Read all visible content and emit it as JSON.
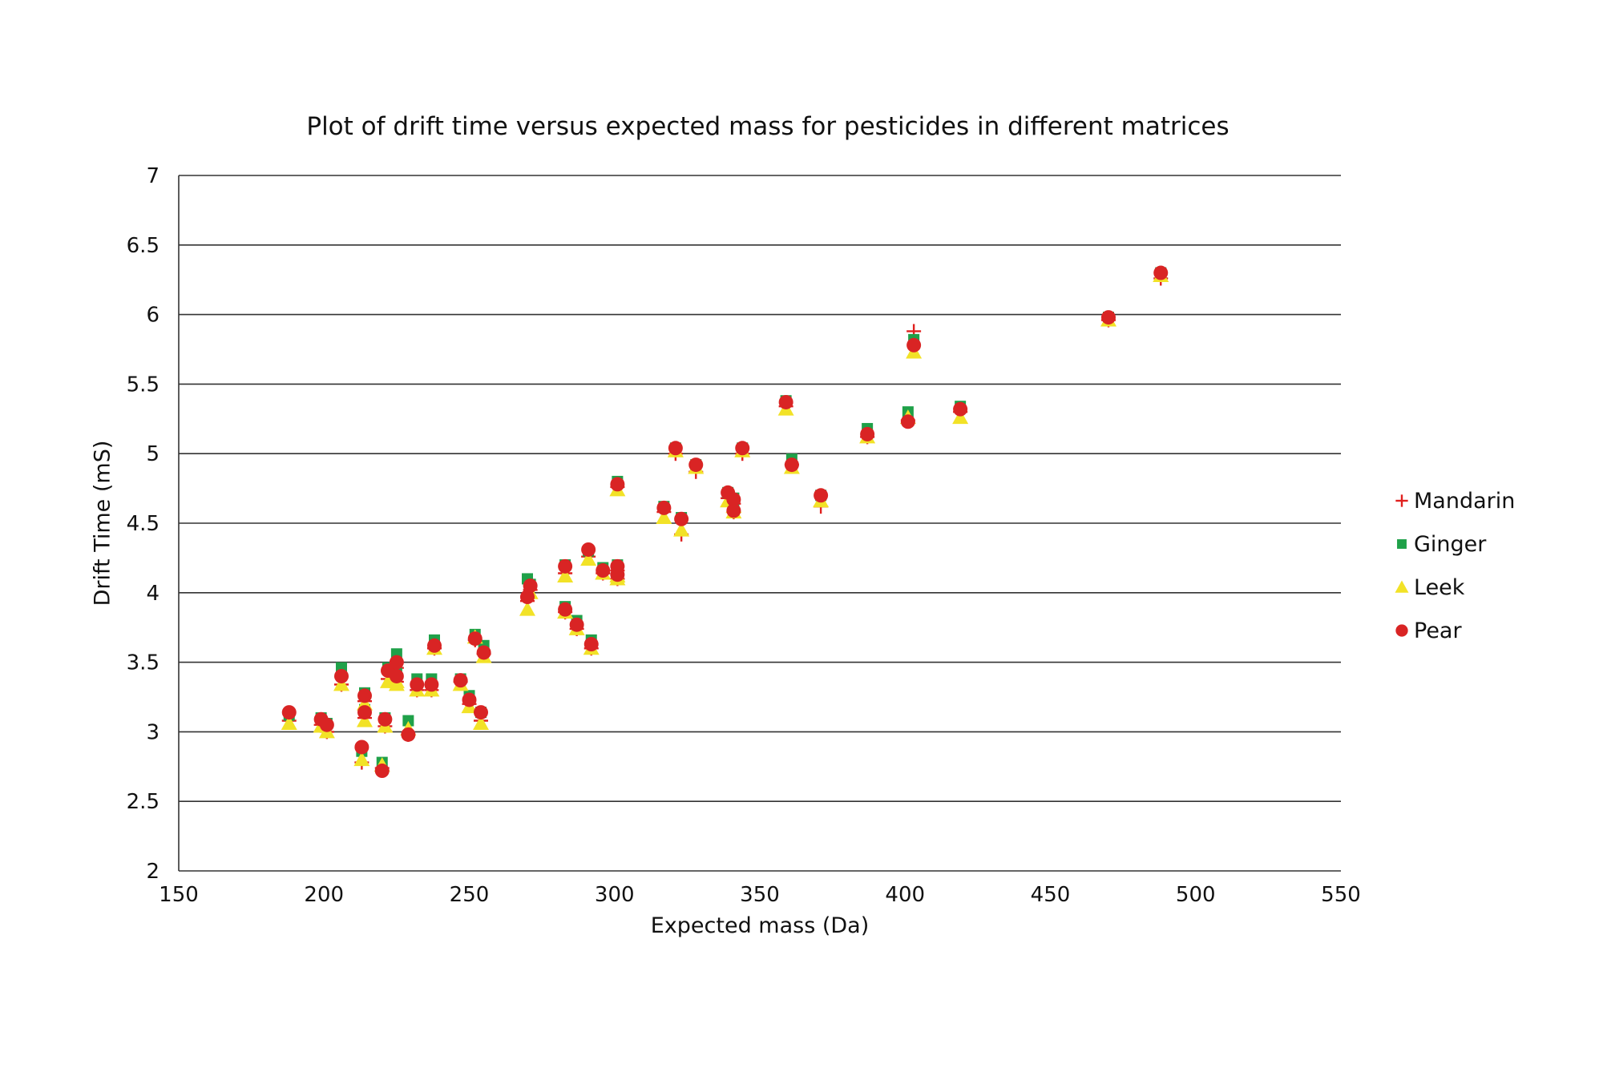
{
  "chart_data": {
    "type": "scatter",
    "title": "Plot of drift time versus expected mass for pesticides in different matrices",
    "xlabel": "Expected mass (Da)",
    "ylabel": "Drift Time (mS)",
    "xlim": [
      150,
      550
    ],
    "ylim": [
      2,
      7
    ],
    "xticks": [
      "150",
      "200",
      "250",
      "300",
      "350",
      "400",
      "450",
      "500",
      "550"
    ],
    "yticks": [
      "2",
      "2.5",
      "3",
      "3.5",
      "4",
      "4.5",
      "5",
      "5.5",
      "6",
      "6.5",
      "7"
    ],
    "grid": "horizontal",
    "legend": "right",
    "x": [
      188,
      199,
      201,
      206,
      213,
      214,
      214,
      220,
      221,
      222,
      225,
      225,
      229,
      232,
      237,
      238,
      247,
      250,
      252,
      254,
      255,
      270,
      271,
      283,
      283,
      287,
      291,
      292,
      296,
      301,
      301,
      301,
      317,
      321,
      323,
      328,
      339,
      341,
      341,
      344,
      359,
      361,
      371,
      387,
      401,
      403,
      419,
      470,
      488
    ],
    "series": [
      {
        "name": "Mandarin",
        "marker": "plus",
        "color": "#e0201e",
        "values": [
          3.08,
          3.05,
          3.0,
          3.34,
          2.78,
          3.22,
          3.1,
          2.74,
          3.04,
          3.38,
          3.46,
          3.36,
          2.98,
          3.3,
          3.3,
          3.6,
          3.36,
          3.2,
          3.66,
          3.08,
          3.56,
          3.94,
          4.02,
          4.14,
          3.86,
          3.74,
          4.26,
          3.6,
          4.14,
          4.16,
          4.1,
          4.76,
          4.58,
          5.0,
          4.42,
          4.87,
          4.68,
          4.64,
          4.58,
          5.0,
          5.34,
          4.92,
          4.62,
          5.12,
          5.24,
          5.88,
          5.3,
          5.96,
          6.26
        ]
      },
      {
        "name": "Ginger",
        "marker": "square",
        "color": "#1fa149",
        "values": [
          3.12,
          3.1,
          3.06,
          3.46,
          2.86,
          3.28,
          3.16,
          2.78,
          3.1,
          3.46,
          3.56,
          3.42,
          3.08,
          3.38,
          3.38,
          3.66,
          3.38,
          3.26,
          3.7,
          3.14,
          3.62,
          4.1,
          4.06,
          4.2,
          3.9,
          3.8,
          4.3,
          3.66,
          4.18,
          4.2,
          4.16,
          4.8,
          4.62,
          5.04,
          4.54,
          4.92,
          4.72,
          4.68,
          4.6,
          5.04,
          5.38,
          4.96,
          4.7,
          5.18,
          5.3,
          5.82,
          5.34,
          5.98,
          6.3
        ]
      },
      {
        "name": "Leek",
        "marker": "triangle",
        "color": "#f2e227",
        "values": [
          3.06,
          3.04,
          3.0,
          3.34,
          2.8,
          3.2,
          3.08,
          2.76,
          3.04,
          3.36,
          3.36,
          3.34,
          3.02,
          3.3,
          3.3,
          3.6,
          3.34,
          3.18,
          3.68,
          3.06,
          3.54,
          3.88,
          4.0,
          4.12,
          3.86,
          3.74,
          4.24,
          3.6,
          4.14,
          4.12,
          4.1,
          4.74,
          4.54,
          5.02,
          4.45,
          4.9,
          4.66,
          4.62,
          4.58,
          5.02,
          5.32,
          4.9,
          4.66,
          5.12,
          5.26,
          5.73,
          5.26,
          5.96,
          6.28
        ]
      },
      {
        "name": "Pear",
        "marker": "circle",
        "color": "#d92424",
        "values": [
          3.14,
          3.09,
          3.05,
          3.4,
          2.89,
          3.26,
          3.14,
          2.72,
          3.09,
          3.44,
          3.5,
          3.4,
          2.98,
          3.34,
          3.34,
          3.62,
          3.37,
          3.23,
          3.67,
          3.14,
          3.57,
          3.97,
          4.05,
          4.19,
          3.88,
          3.77,
          4.31,
          3.63,
          4.16,
          4.19,
          4.13,
          4.78,
          4.61,
          5.04,
          4.53,
          4.92,
          4.72,
          4.67,
          4.59,
          5.04,
          5.37,
          4.92,
          4.7,
          5.14,
          5.23,
          5.78,
          5.32,
          5.98,
          6.3
        ]
      }
    ]
  }
}
